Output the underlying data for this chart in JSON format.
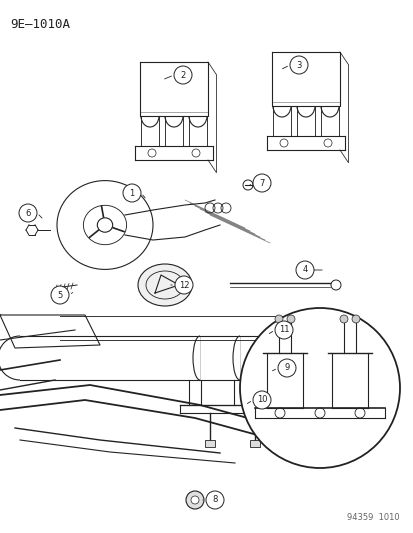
{
  "title": "9E–1010A",
  "footer": "94359  1010",
  "bg": "#ffffff",
  "lc": "#222222",
  "fig_w": 4.14,
  "fig_h": 5.33,
  "dpi": 100
}
